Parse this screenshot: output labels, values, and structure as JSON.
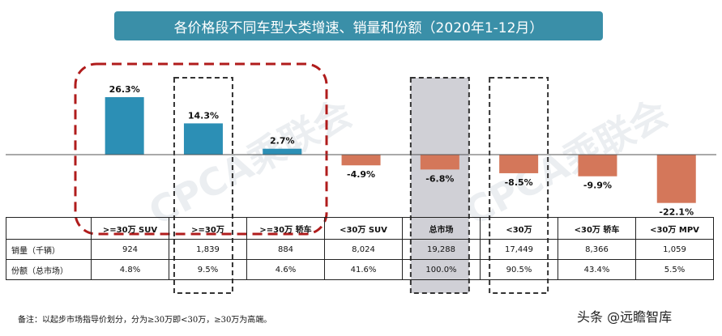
{
  "title": "各价格段不同车型大类增速、销量和份额（2020年1-12月）",
  "watermark": "CPCA乘联会",
  "chart_data": {
    "type": "bar",
    "title": "各价格段不同车型大类增速、销量和份额（2020年1-12月）",
    "categories": [
      ">=30万 SUV",
      ">=30万",
      ">=30万 轿车",
      "<30万 SUV",
      "总市场",
      "<30万",
      "<30万 轿车",
      "<30万 MPV"
    ],
    "values": [
      26.3,
      14.3,
      2.7,
      -4.9,
      -6.8,
      -8.5,
      -9.9,
      -22.1
    ],
    "value_labels": [
      "26.3%",
      "14.3%",
      "2.7%",
      "-4.9%",
      "-6.8%",
      "-8.5%",
      "-9.9%",
      "-22.1%"
    ],
    "unit": "%",
    "positive_color": "#2c8fb5",
    "negative_color": "#d4775a",
    "xlabel": "",
    "ylabel": ""
  },
  "table": {
    "rows": [
      {
        "label": "销量（千辆）",
        "values": [
          "924",
          "1,839",
          "884",
          "8,024",
          "19,288",
          "17,449",
          "8,366",
          "1,059"
        ]
      },
      {
        "label": "份额（总市场）",
        "values": [
          "4.8%",
          "9.5%",
          "4.6%",
          "41.6%",
          "100.0%",
          "90.5%",
          "43.4%",
          "5.5%"
        ]
      }
    ]
  },
  "footnote": "备注：以起步市场指导价划分，分为≥30万即<30万，≥30万为高端。",
  "source": "头条 @远瞻智库"
}
